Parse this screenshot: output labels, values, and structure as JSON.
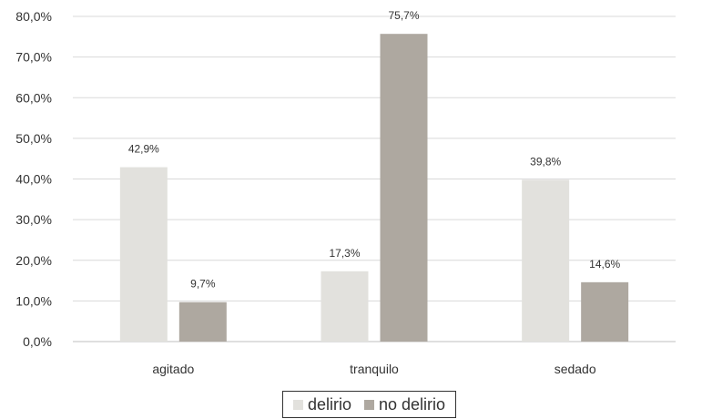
{
  "chart_data": {
    "type": "bar",
    "categories": [
      "agitado",
      "tranquilo",
      "sedado"
    ],
    "series": [
      {
        "name": "delirio",
        "values": [
          42.9,
          17.3,
          39.8
        ],
        "labels": [
          "42,9%",
          "17,3%",
          "39,8%"
        ],
        "color": "#e2e1dd"
      },
      {
        "name": "no delirio",
        "values": [
          9.7,
          75.7,
          14.6
        ],
        "labels": [
          "9,7%",
          "75,7%",
          "14,6%"
        ],
        "color": "#aea8a0"
      }
    ],
    "ylim": [
      0,
      80
    ],
    "yticks": [
      0,
      10,
      20,
      30,
      40,
      50,
      60,
      70,
      80
    ],
    "ytick_labels": [
      "0,0%",
      "10,0%",
      "20,0%",
      "30,0%",
      "40,0%",
      "50,0%",
      "60,0%",
      "70,0%",
      "80,0%"
    ],
    "grid": true,
    "gridline_color": "#d9d9d9",
    "legend_position": "bottom",
    "title": "",
    "xlabel": "",
    "ylabel": ""
  }
}
